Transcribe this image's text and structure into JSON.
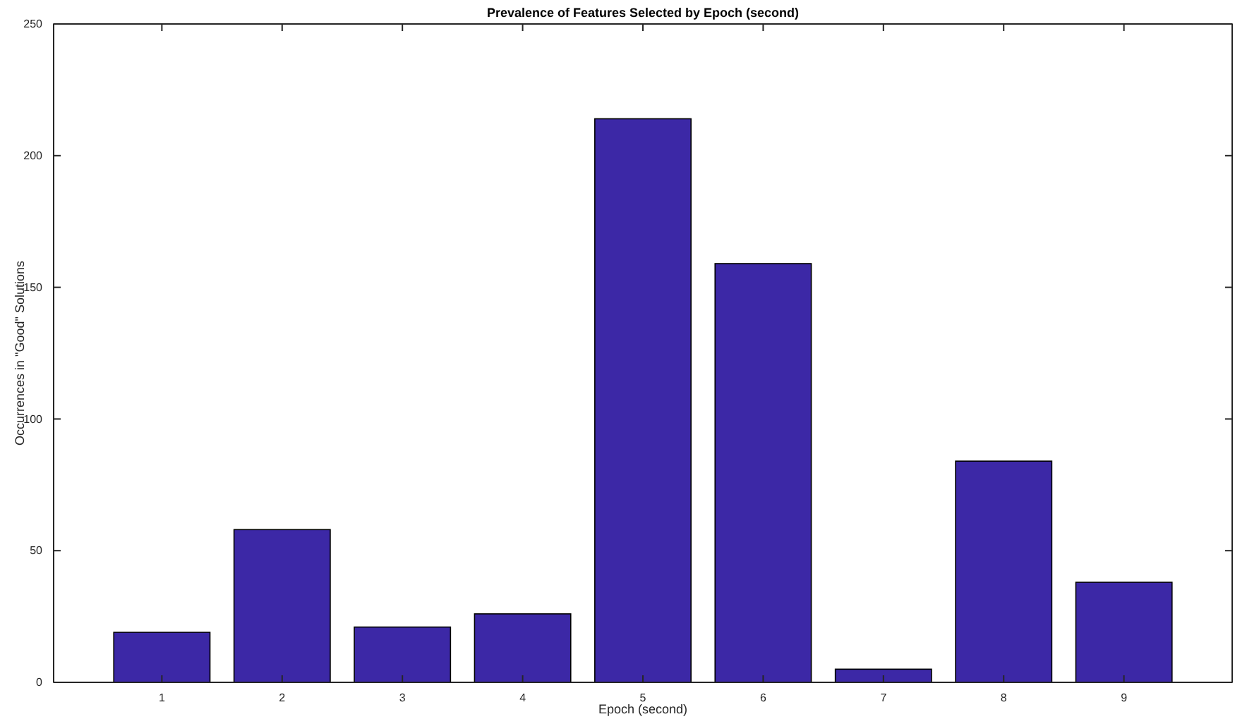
{
  "chart_data": {
    "type": "bar",
    "title": "Prevalence of Features Selected by Epoch (second)",
    "xlabel": "Epoch (second)",
    "ylabel": "Occurrences in \"Good\" Solutions",
    "categories": [
      "1",
      "2",
      "3",
      "4",
      "5",
      "6",
      "7",
      "8",
      "9"
    ],
    "values": [
      19,
      58,
      21,
      26,
      214,
      159,
      5,
      84,
      38
    ],
    "color": "#3c28a6",
    "ylim": [
      0,
      250
    ],
    "yticks": [
      0,
      50,
      100,
      150,
      200,
      250
    ],
    "grid": false
  }
}
